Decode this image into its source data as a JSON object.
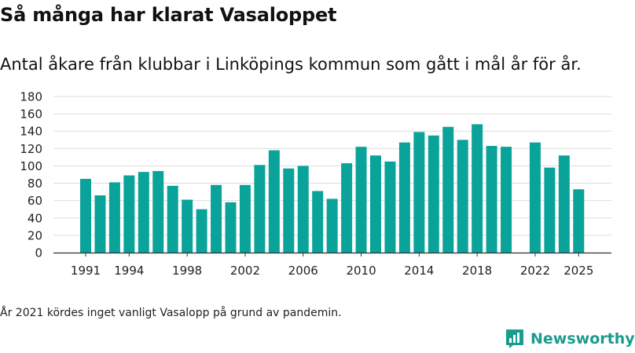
{
  "title": "Så många har klarat Vasaloppet",
  "subtitle": "Antal åkare från klubbar i Linköpings kommun som gått i mål år för år.",
  "footnote": "År 2021 kördes inget vanligt Vasalopp på grund av pandemin.",
  "brand": {
    "name": "Newsworthy"
  },
  "colors": {
    "bar": "#0aa39a",
    "grid": "#dddddd",
    "axis": "#333333",
    "brand": "#1b9c8f"
  },
  "chart_data": {
    "type": "bar",
    "title": "Så många har klarat Vasaloppet",
    "xlabel": "",
    "ylabel": "",
    "ylim": [
      0,
      180
    ],
    "yticks": [
      0,
      20,
      40,
      60,
      80,
      100,
      120,
      140,
      160,
      180
    ],
    "xticks": [
      "1991",
      "1994",
      "1998",
      "2002",
      "2006",
      "2010",
      "2014",
      "2018",
      "2022",
      "2025"
    ],
    "grid": true,
    "categories": [
      "1991",
      "1992",
      "1993",
      "1994",
      "1995",
      "1996",
      "1997",
      "1998",
      "1999",
      "2000",
      "2001",
      "2002",
      "2003",
      "2004",
      "2005",
      "2006",
      "2007",
      "2008",
      "2009",
      "2010",
      "2011",
      "2012",
      "2013",
      "2014",
      "2015",
      "2016",
      "2017",
      "2018",
      "2019",
      "2020",
      "2021",
      "2022",
      "2023",
      "2024",
      "2025"
    ],
    "values": [
      85,
      66,
      81,
      89,
      93,
      94,
      77,
      61,
      50,
      78,
      58,
      78,
      101,
      118,
      97,
      100,
      71,
      62,
      103,
      122,
      112,
      105,
      127,
      139,
      135,
      145,
      130,
      148,
      123,
      122,
      null,
      127,
      98,
      112,
      73
    ]
  }
}
